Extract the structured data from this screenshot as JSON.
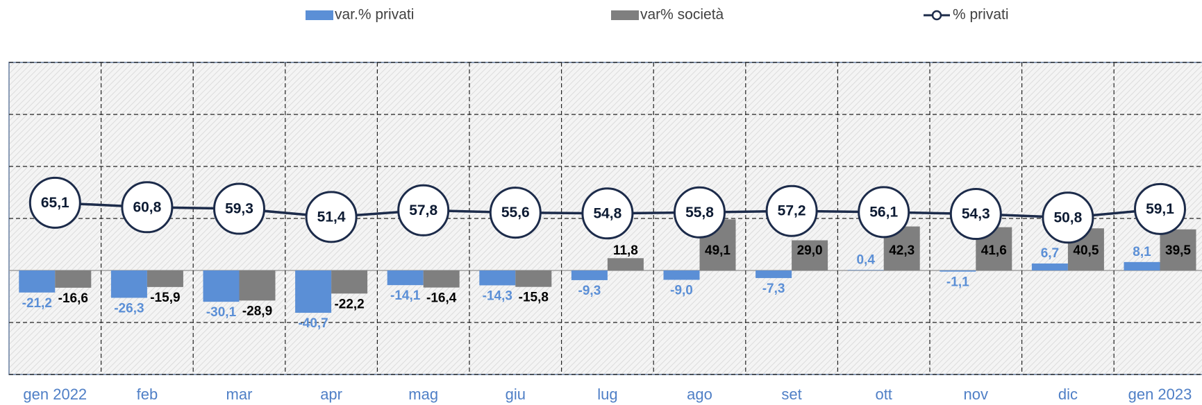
{
  "chart_data": {
    "type": "bar",
    "categories": [
      "gen 2022",
      "feb",
      "mar",
      "apr",
      "mag",
      "giu",
      "lug",
      "ago",
      "set",
      "ott",
      "nov",
      "dic",
      "gen 2023"
    ],
    "series": [
      {
        "name": "var.% privati",
        "color": "#5b8fd6",
        "values": [
          -21.2,
          -26.3,
          -30.1,
          -40.7,
          -14.1,
          -14.3,
          -9.3,
          -9.0,
          -7.3,
          0.4,
          -1.1,
          6.7,
          8.1
        ],
        "value_labels": [
          "-21,2",
          "-26,3",
          "-30,1",
          "-40,7",
          "-14,1",
          "-14,3",
          "-9,3",
          "-9,0",
          "-7,3",
          "0,4",
          "-1,1",
          "6,7",
          "8,1"
        ]
      },
      {
        "name": "var% società",
        "color": "#7f7f7f",
        "values": [
          -16.6,
          -15.9,
          -28.9,
          -22.2,
          -16.4,
          -15.8,
          11.8,
          49.1,
          29.0,
          42.3,
          41.6,
          40.5,
          39.5
        ],
        "value_labels": [
          "-16,6",
          "-15,9",
          "-28,9",
          "-22,2",
          "-16,4",
          "-15,8",
          "11,8",
          "49,1",
          "29,0",
          "42,3",
          "41,6",
          "40,5",
          "39,5"
        ]
      },
      {
        "name": "% privati",
        "type": "line",
        "color": "#1c2b4a",
        "values": [
          65.1,
          60.8,
          59.3,
          51.4,
          57.8,
          55.6,
          54.8,
          55.8,
          57.2,
          56.1,
          54.3,
          50.8,
          59.1
        ],
        "value_labels": [
          "65,1",
          "60,8",
          "59,3",
          "51,4",
          "57,8",
          "55,6",
          "54,8",
          "55,8",
          "57,2",
          "56,1",
          "54,3",
          "50,8",
          "59,1"
        ]
      }
    ],
    "ylim": [
      -100,
      200
    ],
    "yticks": [
      -100,
      -50,
      0,
      50,
      100,
      150,
      200
    ],
    "grid": true
  }
}
